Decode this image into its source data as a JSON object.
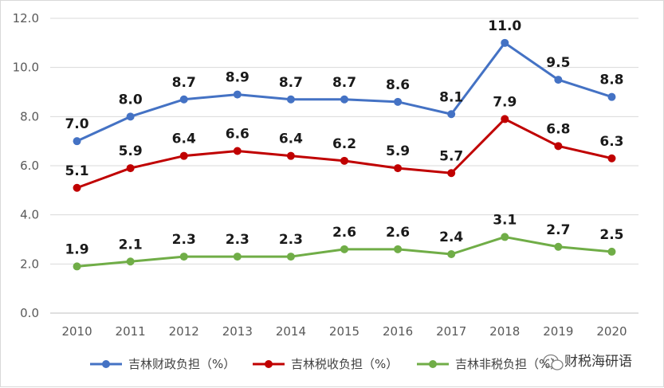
{
  "chart_data": {
    "type": "line",
    "categories": [
      "2010",
      "2011",
      "2012",
      "2013",
      "2014",
      "2015",
      "2016",
      "2017",
      "2018",
      "2019",
      "2020"
    ],
    "ylim": [
      0,
      12
    ],
    "yticks": [
      "0.0",
      "2.0",
      "4.0",
      "6.0",
      "8.0",
      "10.0",
      "12.0"
    ],
    "grid": "horizontal",
    "legend_position": "bottom",
    "series": [
      {
        "name": "吉林财政负担（%）",
        "color": "#4472C4",
        "values": [
          7.0,
          8.0,
          8.7,
          8.9,
          8.7,
          8.7,
          8.6,
          8.1,
          11.0,
          9.5,
          8.8
        ],
        "labels": [
          "7.0",
          "8.0",
          "8.7",
          "8.9",
          "8.7",
          "8.7",
          "8.6",
          "8.1",
          "11.0",
          "9.5",
          "8.8"
        ]
      },
      {
        "name": "吉林税收负担（%）",
        "color": "#C00000",
        "values": [
          5.1,
          5.9,
          6.4,
          6.6,
          6.4,
          6.2,
          5.9,
          5.7,
          7.9,
          6.8,
          6.3
        ],
        "labels": [
          "5.1",
          "5.9",
          "6.4",
          "6.6",
          "6.4",
          "6.2",
          "5.9",
          "5.7",
          "7.9",
          "6.8",
          "6.3"
        ]
      },
      {
        "name": "吉林非税负担（%）",
        "color": "#70AD47",
        "values": [
          1.9,
          2.1,
          2.3,
          2.3,
          2.3,
          2.6,
          2.6,
          2.4,
          3.1,
          2.7,
          2.5
        ],
        "labels": [
          "1.9",
          "2.1",
          "2.3",
          "2.3",
          "2.3",
          "2.6",
          "2.6",
          "2.4",
          "3.1",
          "2.7",
          "2.5"
        ]
      }
    ]
  },
  "watermark": {
    "text": "财税海研语",
    "icon": "wechat-icon"
  }
}
